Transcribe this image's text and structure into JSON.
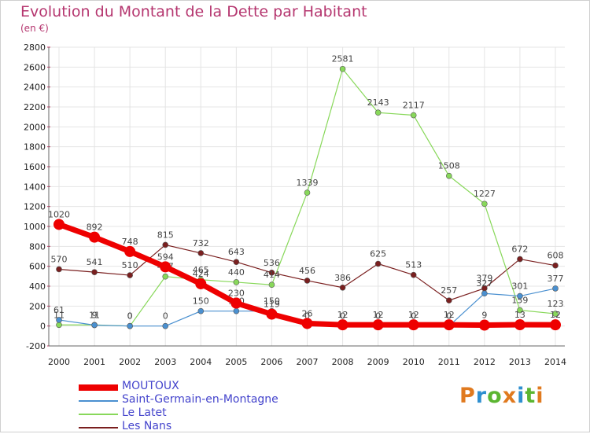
{
  "title": "Evolution du Montant de la Dette par Habitant",
  "unit": "(en €)",
  "logo": {
    "text": "Proxiti",
    "colors": [
      "#e07a1f",
      "#2e8fd0",
      "#5bb531",
      "#e07a1f",
      "#2e8fd0",
      "#5bb531",
      "#e07a1f"
    ]
  },
  "chart_data": {
    "type": "line",
    "x": [
      "2000",
      "2001",
      "2002",
      "2003",
      "2004",
      "2005",
      "2006",
      "2007",
      "2008",
      "2009",
      "2010",
      "2011",
      "2012",
      "2013",
      "2014"
    ],
    "ylim": [
      -200,
      2800
    ],
    "yticks": [
      -200,
      0,
      200,
      400,
      600,
      800,
      1000,
      1200,
      1400,
      1600,
      1800,
      2000,
      2200,
      2400,
      2600,
      2800
    ],
    "grid": true,
    "legend_position": "bottom-left",
    "series": [
      {
        "name": "Les Nans",
        "color": "#7a1f1f",
        "width": 1.2,
        "marker": 3.5,
        "values": [
          570,
          541,
          510,
          815,
          732,
          643,
          536,
          456,
          386,
          625,
          513,
          257,
          379,
          672,
          608
        ],
        "labels": [
          "570",
          "541",
          "510",
          "815",
          "732",
          "643",
          "536",
          "456",
          "386",
          "625",
          "513",
          "257",
          "379",
          "672",
          "608"
        ]
      },
      {
        "name": "Le Latet",
        "color": "#88d85a",
        "width": 1.2,
        "marker": 3.5,
        "values": [
          11,
          11,
          0,
          497,
          465,
          440,
          414,
          1339,
          2581,
          2143,
          2117,
          1508,
          1227,
          159,
          123
        ],
        "labels": [
          "11",
          "11",
          "0",
          "497",
          "465",
          "440",
          "414",
          "1339",
          "2581",
          "2143",
          "2117",
          "1508",
          "1227",
          "159",
          "123"
        ]
      },
      {
        "name": "Saint-Germain-en-Montagne",
        "color": "#4a90d0",
        "width": 1.2,
        "marker": 3.5,
        "values": [
          61,
          9,
          0,
          0,
          150,
          150,
          150,
          0,
          0,
          0,
          0,
          0,
          327,
          301,
          377
        ],
        "labels": [
          "61",
          "9",
          "0",
          "0",
          "150",
          "150",
          "150",
          "0",
          "0",
          "0",
          "0",
          "0",
          "327",
          "301",
          "377"
        ]
      },
      {
        "name": "MOUTOUX",
        "color": "#ee0000",
        "width": 7,
        "marker": 7,
        "values": [
          1020,
          892,
          748,
          594,
          424,
          230,
          119,
          26,
          12,
          12,
          12,
          12,
          9,
          13,
          12
        ],
        "labels": [
          "1020",
          "892",
          "748",
          "594",
          "424",
          "230",
          "119",
          "26",
          "12",
          "12",
          "12",
          "12",
          "9",
          "13",
          "12"
        ]
      }
    ],
    "legend": [
      {
        "name": "MOUTOUX",
        "color": "#ee0000",
        "thick": true
      },
      {
        "name": "Saint-Germain-en-Montagne",
        "color": "#4a90d0",
        "thick": false
      },
      {
        "name": "Le Latet",
        "color": "#88d85a",
        "thick": false
      },
      {
        "name": "Les Nans",
        "color": "#7a1f1f",
        "thick": false
      }
    ]
  }
}
